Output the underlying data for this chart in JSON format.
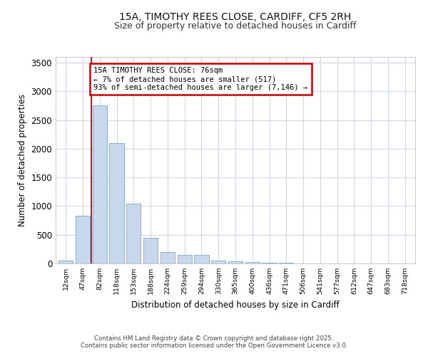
{
  "title_line1": "15A, TIMOTHY REES CLOSE, CARDIFF, CF5 2RH",
  "title_line2": "Size of property relative to detached houses in Cardiff",
  "xlabel": "Distribution of detached houses by size in Cardiff",
  "ylabel": "Number of detached properties",
  "categories": [
    "12sqm",
    "47sqm",
    "82sqm",
    "118sqm",
    "153sqm",
    "188sqm",
    "224sqm",
    "259sqm",
    "294sqm",
    "330sqm",
    "365sqm",
    "400sqm",
    "436sqm",
    "471sqm",
    "506sqm",
    "541sqm",
    "577sqm",
    "612sqm",
    "647sqm",
    "683sqm",
    "718sqm"
  ],
  "values": [
    50,
    830,
    2760,
    2100,
    1040,
    450,
    200,
    155,
    155,
    55,
    35,
    20,
    15,
    8,
    5,
    3,
    2,
    1,
    1,
    1,
    1
  ],
  "bar_color": "#c8d8ec",
  "bar_edge_color": "#8ab0d0",
  "plot_bg_color": "#ffffff",
  "fig_bg_color": "#ffffff",
  "grid_color": "#d0d8e8",
  "redline_x": 1.5,
  "annotation_text": "15A TIMOTHY REES CLOSE: 76sqm\n← 7% of detached houses are smaller (517)\n93% of semi-detached houses are larger (7,146) →",
  "annotation_box_color": "#ffffff",
  "annotation_box_edge": "#cc0000",
  "redline_color": "#cc0000",
  "ylim": [
    0,
    3600
  ],
  "yticks": [
    0,
    500,
    1000,
    1500,
    2000,
    2500,
    3000,
    3500
  ],
  "footer_line1": "Contains HM Land Registry data © Crown copyright and database right 2025.",
  "footer_line2": "Contains public sector information licensed under the Open Government Licence v3.0."
}
